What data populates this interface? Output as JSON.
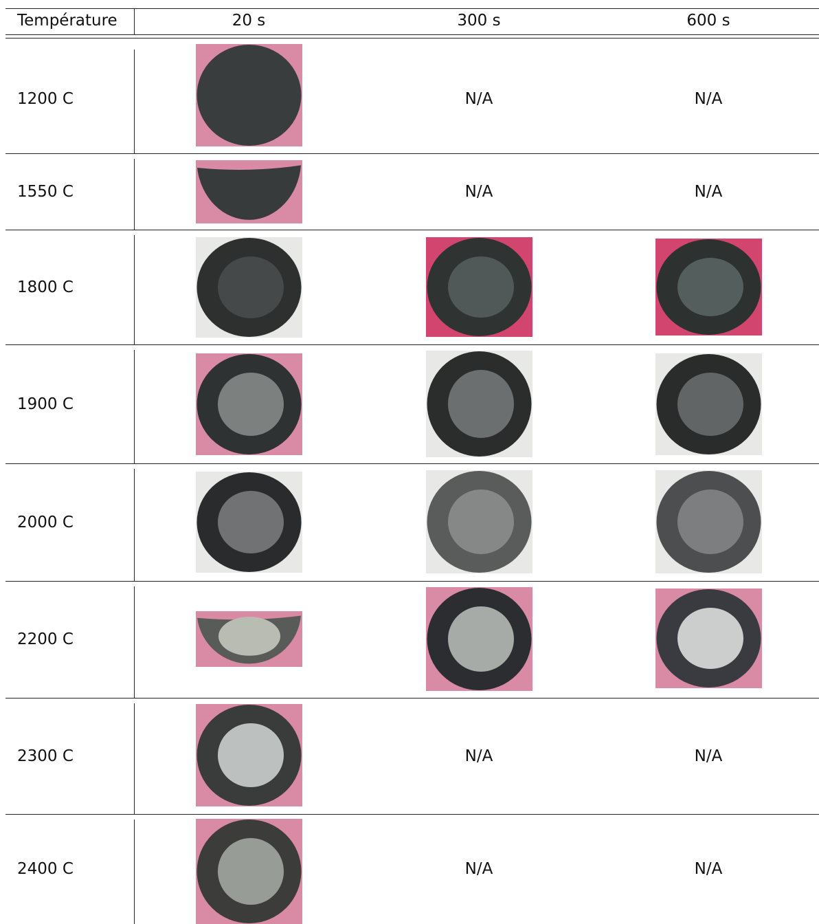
{
  "header": [
    "Température",
    "20 s",
    "300 s",
    "600 s"
  ],
  "rows": [
    {
      "temperature": "1200 C",
      "cells": [
        "N/A",
        "N/A"
      ]
    },
    {
      "temperature": "1550 C",
      "cells": [
        "N/A",
        "N/A"
      ]
    },
    {
      "temperature": "1800 C",
      "cells": []
    },
    {
      "temperature": "1900 C",
      "cells": []
    },
    {
      "temperature": "2000 C",
      "cells": []
    },
    {
      "temperature": "2200 C",
      "cells": []
    },
    {
      "temperature": "2300 C",
      "cells": [
        "N/A",
        "N/A"
      ]
    },
    {
      "temperature": "2400 C",
      "cells": [
        "N/A",
        "N/A"
      ]
    }
  ]
}
